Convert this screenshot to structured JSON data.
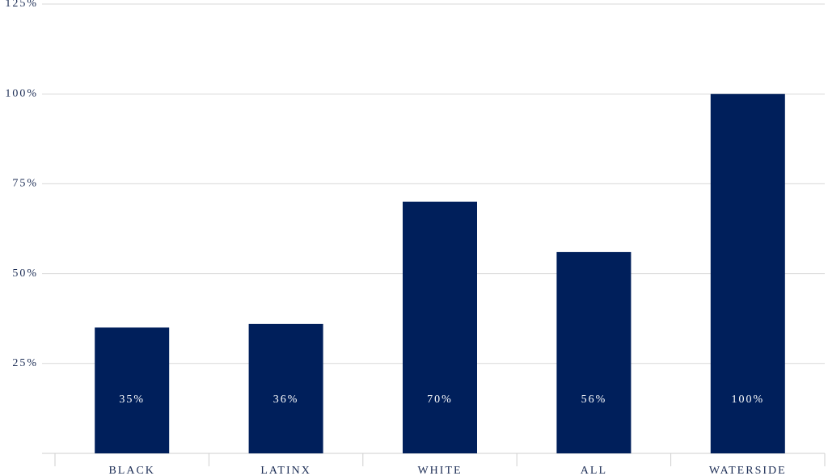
{
  "chart_data": {
    "type": "bar",
    "categories": [
      "BLACK",
      "LATINX",
      "WHITE",
      "ALL",
      "WATERSIDE"
    ],
    "values": [
      35,
      36,
      70,
      56,
      100
    ],
    "value_labels": [
      "35%",
      "36%",
      "70%",
      "56%",
      "100%"
    ],
    "color": "#001f5b",
    "ylim": [
      0,
      125
    ],
    "yticks": [
      {
        "value": 25,
        "label": "25%"
      },
      {
        "value": 50,
        "label": "50%"
      },
      {
        "value": 75,
        "label": "75%"
      },
      {
        "value": 100,
        "label": "100%"
      },
      {
        "value": 125,
        "label": "125%"
      }
    ],
    "grid": true
  }
}
